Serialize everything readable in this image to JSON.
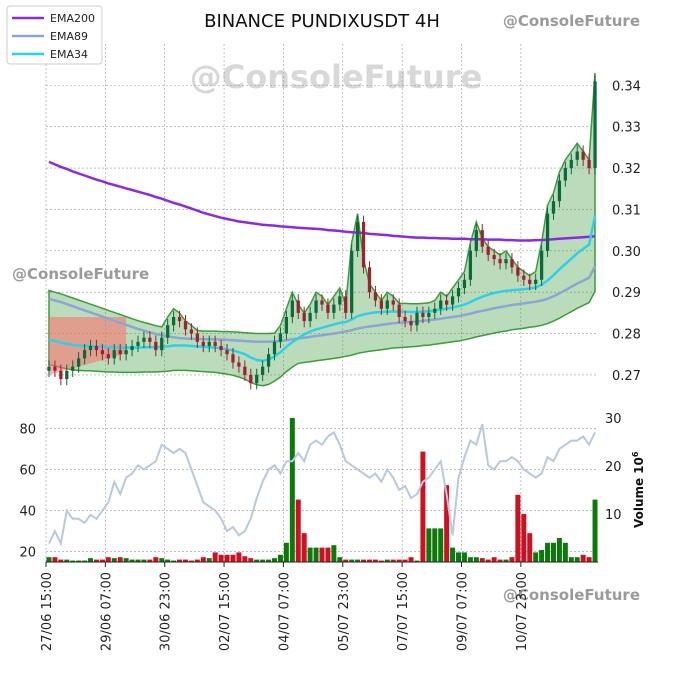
{
  "chart_data": {
    "type": "candlestick",
    "title": "BINANCE PUNDIXUSDT 4H",
    "watermark": "@ConsoleFuture",
    "colors": {
      "up": "#0a6b3a",
      "down": "#a02030",
      "ema200": "#8a2be2",
      "ema89": "#8aa6d4",
      "ema34": "#2ed0e8",
      "cloud_green": "#3c9c3c",
      "cloud_red": "#ff6b6b",
      "vol_up": "#0b7a0b",
      "vol_down": "#d01020",
      "rsi": "#b7c8e0"
    },
    "legend": {
      "placement": "top-left",
      "entries": [
        "EMA200",
        "EMA89",
        "EMA34"
      ]
    },
    "price_axis": {
      "side": "right",
      "ylim": [
        0.262,
        0.35
      ],
      "ticks": [
        "0.27",
        "0.28",
        "0.29",
        "0.30",
        "0.31",
        "0.32",
        "0.33",
        "0.34"
      ]
    },
    "x_axis": {
      "labels": [
        "27/06 15:00",
        "29/06 07:00",
        "30/06 23:00",
        "02/07 15:00",
        "04/07 07:00",
        "05/07 23:00",
        "07/07 15:00",
        "09/07 07:00",
        "10/07 23:00"
      ]
    },
    "rsi_axis": {
      "side": "left",
      "ylim": [
        15,
        85
      ],
      "ticks": [
        "20",
        "40",
        "60",
        "80"
      ]
    },
    "volume_axis": {
      "side": "right",
      "label": "Volume",
      "unit": "10",
      "unit_exp": "6",
      "ylim": [
        0,
        30
      ],
      "ticks": [
        "10",
        "20",
        "30"
      ]
    },
    "grid": true,
    "bars": 93,
    "close": [
      0.272,
      0.271,
      0.269,
      0.271,
      0.272,
      0.274,
      0.276,
      0.277,
      0.276,
      0.275,
      0.274,
      0.276,
      0.275,
      0.276,
      0.277,
      0.278,
      0.279,
      0.278,
      0.276,
      0.279,
      0.282,
      0.284,
      0.283,
      0.281,
      0.28,
      0.278,
      0.277,
      0.278,
      0.277,
      0.276,
      0.275,
      0.273,
      0.272,
      0.27,
      0.268,
      0.27,
      0.272,
      0.275,
      0.278,
      0.28,
      0.284,
      0.288,
      0.285,
      0.283,
      0.285,
      0.288,
      0.287,
      0.285,
      0.287,
      0.289,
      0.285,
      0.3,
      0.307,
      0.296,
      0.29,
      0.288,
      0.286,
      0.288,
      0.287,
      0.284,
      0.283,
      0.282,
      0.285,
      0.284,
      0.285,
      0.286,
      0.288,
      0.287,
      0.289,
      0.291,
      0.293,
      0.3,
      0.305,
      0.301,
      0.299,
      0.298,
      0.297,
      0.298,
      0.296,
      0.294,
      0.293,
      0.292,
      0.293,
      0.3,
      0.309,
      0.312,
      0.317,
      0.32,
      0.322,
      0.324,
      0.322,
      0.32,
      0.341
    ],
    "ema200": [
      0.3215,
      0.3209,
      0.3203,
      0.3198,
      0.3192,
      0.3187,
      0.3182,
      0.3177,
      0.3172,
      0.3168,
      0.3163,
      0.3159,
      0.3155,
      0.3151,
      0.3147,
      0.3143,
      0.3139,
      0.3135,
      0.313,
      0.3126,
      0.3121,
      0.3116,
      0.3112,
      0.3107,
      0.3102,
      0.3097,
      0.3092,
      0.3088,
      0.3084,
      0.308,
      0.3077,
      0.3074,
      0.3071,
      0.3069,
      0.3067,
      0.3065,
      0.3063,
      0.3062,
      0.3061,
      0.3059,
      0.3058,
      0.3057,
      0.3056,
      0.3055,
      0.3054,
      0.3053,
      0.3052,
      0.305,
      0.3049,
      0.3048,
      0.3046,
      0.3045,
      0.3044,
      0.3043,
      0.3041,
      0.304,
      0.3039,
      0.3038,
      0.3036,
      0.3035,
      0.3034,
      0.3033,
      0.3032,
      0.3032,
      0.3031,
      0.3031,
      0.303,
      0.303,
      0.3029,
      0.3029,
      0.3029,
      0.3028,
      0.3028,
      0.3028,
      0.3027,
      0.3027,
      0.3027,
      0.3026,
      0.3026,
      0.3025,
      0.3025,
      0.3025,
      0.3026,
      0.3026,
      0.3027,
      0.3028,
      0.3029,
      0.303,
      0.3031,
      0.3032,
      0.3033,
      0.3034,
      0.3035
    ],
    "ema89": [
      0.2884,
      0.288,
      0.2876,
      0.2871,
      0.2866,
      0.2861,
      0.2856,
      0.2851,
      0.2846,
      0.2841,
      0.2836,
      0.2831,
      0.2826,
      0.2821,
      0.2816,
      0.2811,
      0.2807,
      0.2803,
      0.2799,
      0.2796,
      0.2793,
      0.2791,
      0.2789,
      0.2788,
      0.2787,
      0.2787,
      0.2786,
      0.2786,
      0.2786,
      0.2785,
      0.2785,
      0.2784,
      0.2783,
      0.2782,
      0.2781,
      0.278,
      0.278,
      0.278,
      0.2781,
      0.2782,
      0.2784,
      0.2786,
      0.2788,
      0.279,
      0.2792,
      0.2794,
      0.2796,
      0.2798,
      0.28,
      0.2802,
      0.2805,
      0.2808,
      0.2812,
      0.2815,
      0.2817,
      0.2819,
      0.2821,
      0.2823,
      0.2825,
      0.2826,
      0.2827,
      0.2828,
      0.2829,
      0.2831,
      0.2832,
      0.2834,
      0.2836,
      0.2838,
      0.284,
      0.2842,
      0.2845,
      0.2848,
      0.2852,
      0.2855,
      0.2858,
      0.2861,
      0.2864,
      0.2866,
      0.2869,
      0.2871,
      0.2873,
      0.2875,
      0.2877,
      0.288,
      0.2884,
      0.289,
      0.2897,
      0.2905,
      0.2913,
      0.2921,
      0.2928,
      0.2935,
      0.2962
    ],
    "ema34": [
      0.2785,
      0.2782,
      0.2778,
      0.2775,
      0.2772,
      0.2771,
      0.277,
      0.277,
      0.2769,
      0.2768,
      0.2767,
      0.2767,
      0.2766,
      0.2766,
      0.2766,
      0.2766,
      0.2767,
      0.2767,
      0.2767,
      0.2768,
      0.2769,
      0.2771,
      0.2771,
      0.2771,
      0.277,
      0.2769,
      0.2768,
      0.2767,
      0.2766,
      0.2764,
      0.2762,
      0.2759,
      0.2755,
      0.275,
      0.2742,
      0.2736,
      0.2734,
      0.2737,
      0.2745,
      0.2755,
      0.2768,
      0.2779,
      0.2789,
      0.2798,
      0.2805,
      0.281,
      0.2814,
      0.2818,
      0.2822,
      0.2826,
      0.2828,
      0.2834,
      0.2842,
      0.2846,
      0.2849,
      0.2851,
      0.2852,
      0.2853,
      0.2853,
      0.2853,
      0.2853,
      0.2852,
      0.2852,
      0.2853,
      0.2854,
      0.2856,
      0.2858,
      0.286,
      0.2863,
      0.2866,
      0.287,
      0.2876,
      0.2883,
      0.2889,
      0.2894,
      0.2898,
      0.2901,
      0.2903,
      0.2905,
      0.2906,
      0.2907,
      0.2909,
      0.2911,
      0.2918,
      0.2928,
      0.2941,
      0.2955,
      0.2968,
      0.2981,
      0.2994,
      0.3005,
      0.3015,
      0.3085
    ],
    "rsi": [
      24,
      30,
      24,
      40,
      36,
      36,
      34,
      38,
      36,
      40,
      44,
      54,
      48,
      56,
      58,
      62,
      60,
      62,
      64,
      72,
      70,
      68,
      70,
      68,
      60,
      52,
      44,
      42,
      40,
      36,
      30,
      32,
      28,
      30,
      36,
      46,
      54,
      60,
      62,
      58,
      64,
      64,
      68,
      64,
      72,
      74,
      72,
      76,
      78,
      72,
      64,
      62,
      60,
      58,
      56,
      58,
      54,
      60,
      56,
      50,
      52,
      46,
      48,
      54,
      56,
      60,
      64,
      48,
      28,
      56,
      66,
      74,
      72,
      82,
      62,
      60,
      64,
      64,
      66,
      64,
      60,
      58,
      56,
      58,
      66,
      64,
      70,
      72,
      74,
      74,
      76,
      72,
      78
    ],
    "volume": [
      1,
      1,
      0.5,
      0.5,
      0.3,
      0.3,
      0.3,
      0.8,
      0.5,
      0.5,
      1,
      0.8,
      1,
      0.8,
      0.5,
      0.5,
      0.5,
      0.5,
      1,
      0.8,
      0.5,
      0.3,
      0.5,
      0.5,
      0.3,
      0.5,
      1,
      0.8,
      2,
      1.5,
      1.5,
      1.5,
      2,
      1.2,
      0.8,
      0.5,
      0.5,
      0.5,
      0.8,
      1.5,
      4,
      30,
      13,
      6,
      3,
      3,
      3,
      3,
      3.5,
      1,
      0.5,
      0.5,
      0.5,
      0.5,
      0.5,
      0.5,
      0.3,
      0.5,
      0.5,
      0.5,
      0.5,
      1,
      0.3,
      23,
      7,
      7,
      7,
      16,
      3,
      2,
      2,
      1,
      1,
      0.8,
      0.5,
      1,
      0.5,
      0.5,
      1,
      14,
      10,
      6,
      2,
      2.5,
      4,
      4,
      5,
      4,
      1,
      1,
      1.5,
      1,
      13
    ]
  }
}
